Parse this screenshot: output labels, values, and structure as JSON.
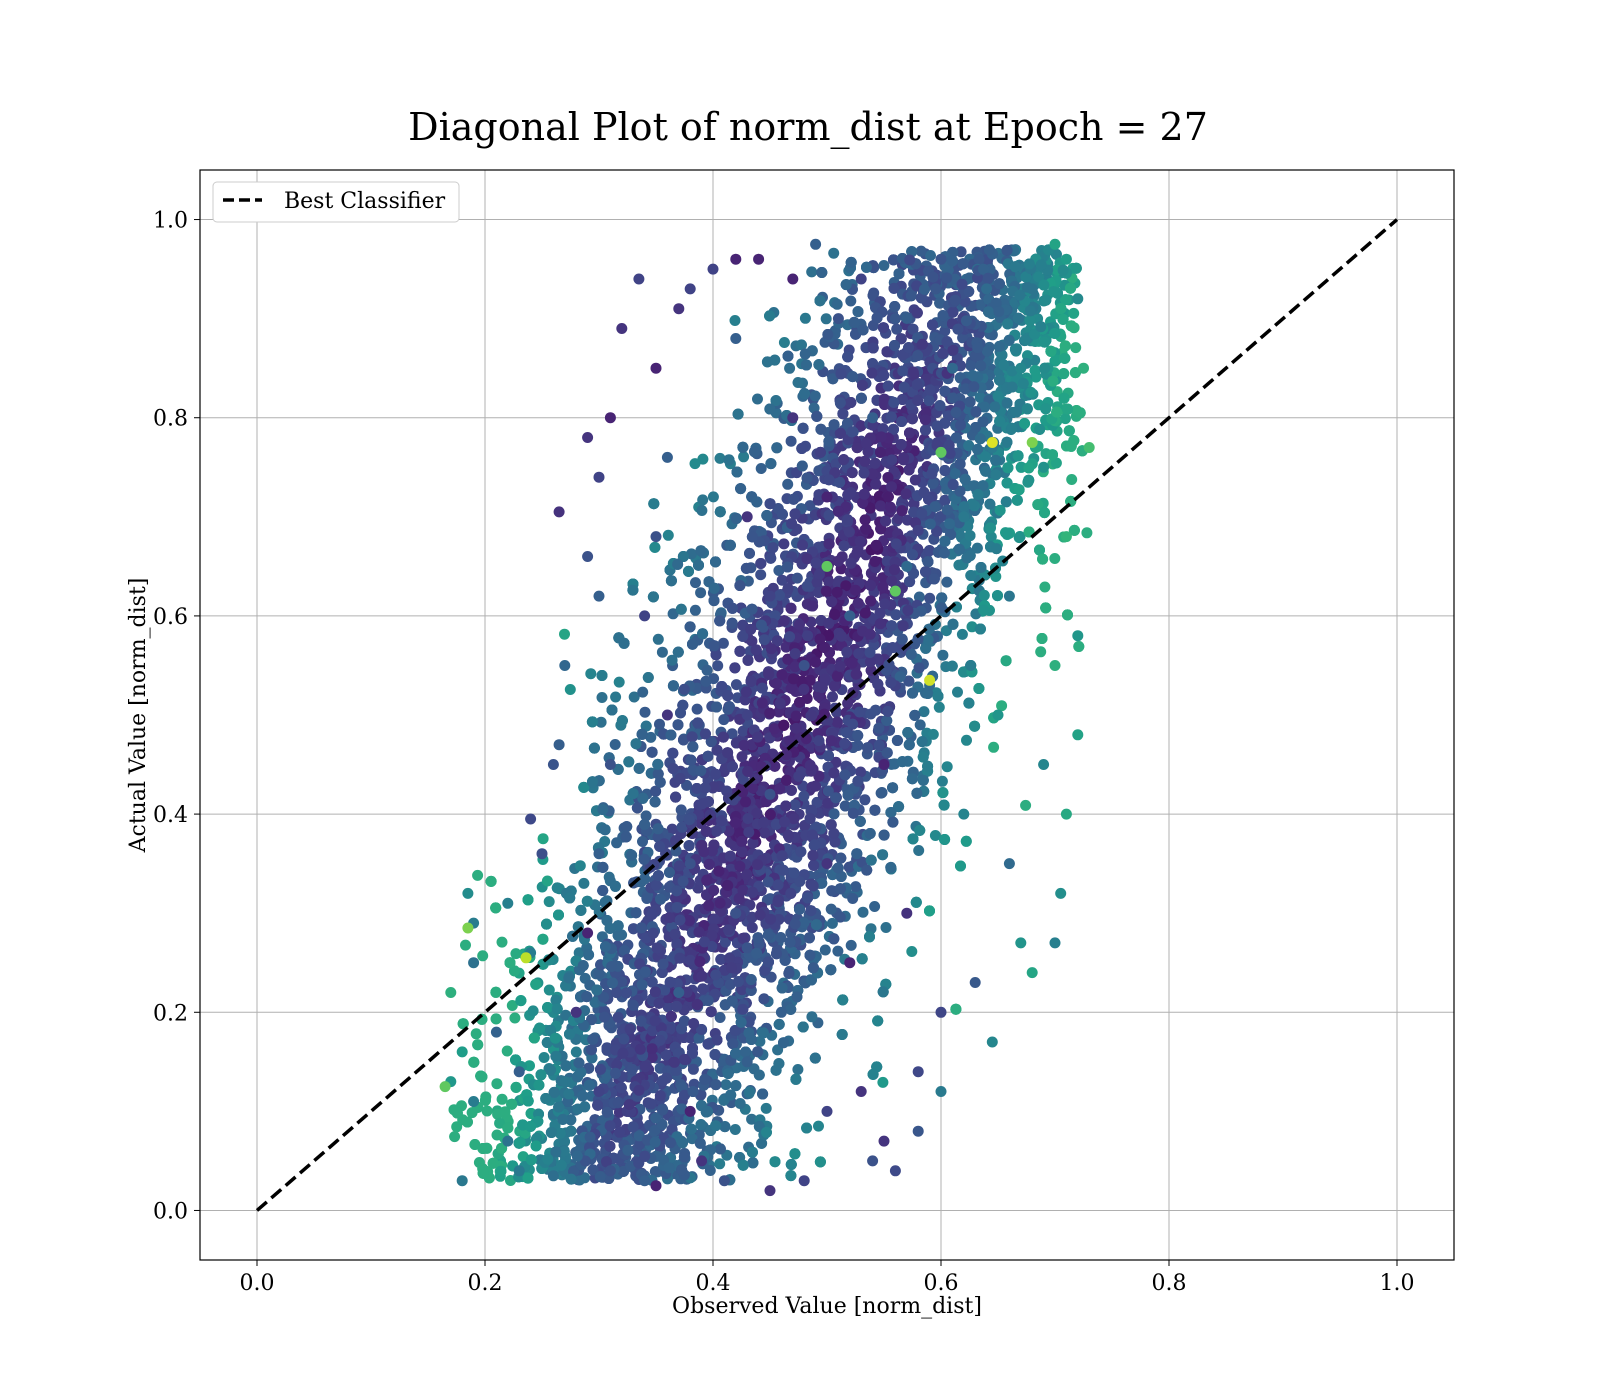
{
  "chart_data": {
    "type": "scatter",
    "title": "Diagonal Plot of norm_dist at Epoch = 27",
    "xlabel": "Observed Value [norm_dist]",
    "ylabel": "Actual Value [norm_dist]",
    "xlim": [
      -0.05,
      1.05
    ],
    "ylim": [
      -0.05,
      1.05
    ],
    "xticks": [
      "0.0",
      "0.2",
      "0.4",
      "0.6",
      "0.8",
      "1.0"
    ],
    "yticks": [
      "0.0",
      "0.2",
      "0.4",
      "0.6",
      "0.8",
      "1.0"
    ],
    "grid": true,
    "legend": {
      "placement": "upper-left",
      "entries": [
        "Best Classifier"
      ]
    },
    "colormap": "viridis",
    "series": [
      {
        "name": "Best Classifier",
        "kind": "line",
        "style": "dashed",
        "color": "#000000",
        "x": [
          0.0,
          1.0
        ],
        "y": [
          0.0,
          1.0
        ]
      }
    ],
    "points": [
      {
        "x": 0.18,
        "y": 0.03
      },
      {
        "x": 0.19,
        "y": 0.11
      },
      {
        "x": 0.17,
        "y": 0.13
      },
      {
        "x": 0.18,
        "y": 0.16
      },
      {
        "x": 0.17,
        "y": 0.22
      },
      {
        "x": 0.19,
        "y": 0.25
      },
      {
        "x": 0.19,
        "y": 0.29
      },
      {
        "x": 0.185,
        "y": 0.32
      },
      {
        "x": 0.22,
        "y": 0.31
      },
      {
        "x": 0.24,
        "y": 0.26
      },
      {
        "x": 0.21,
        "y": 0.18
      },
      {
        "x": 0.23,
        "y": 0.14
      },
      {
        "x": 0.22,
        "y": 0.07
      },
      {
        "x": 0.23,
        "y": 0.04
      },
      {
        "x": 0.26,
        "y": 0.035
      },
      {
        "x": 0.24,
        "y": 0.395
      },
      {
        "x": 0.25,
        "y": 0.36
      },
      {
        "x": 0.26,
        "y": 0.45
      },
      {
        "x": 0.265,
        "y": 0.47
      },
      {
        "x": 0.27,
        "y": 0.55
      },
      {
        "x": 0.265,
        "y": 0.705
      },
      {
        "x": 0.29,
        "y": 0.78
      },
      {
        "x": 0.3,
        "y": 0.74
      },
      {
        "x": 0.29,
        "y": 0.66
      },
      {
        "x": 0.3,
        "y": 0.62
      },
      {
        "x": 0.31,
        "y": 0.8
      },
      {
        "x": 0.32,
        "y": 0.89
      },
      {
        "x": 0.335,
        "y": 0.94
      },
      {
        "x": 0.31,
        "y": 0.45
      },
      {
        "x": 0.3,
        "y": 0.36
      },
      {
        "x": 0.29,
        "y": 0.28
      },
      {
        "x": 0.28,
        "y": 0.2
      },
      {
        "x": 0.3,
        "y": 0.12
      },
      {
        "x": 0.31,
        "y": 0.04
      },
      {
        "x": 0.34,
        "y": 0.03
      },
      {
        "x": 0.35,
        "y": 0.025
      },
      {
        "x": 0.36,
        "y": 0.5
      },
      {
        "x": 0.34,
        "y": 0.6
      },
      {
        "x": 0.35,
        "y": 0.68
      },
      {
        "x": 0.36,
        "y": 0.76
      },
      {
        "x": 0.35,
        "y": 0.85
      },
      {
        "x": 0.37,
        "y": 0.91
      },
      {
        "x": 0.38,
        "y": 0.93
      },
      {
        "x": 0.38,
        "y": 0.35
      },
      {
        "x": 0.37,
        "y": 0.22
      },
      {
        "x": 0.38,
        "y": 0.1
      },
      {
        "x": 0.39,
        "y": 0.05
      },
      {
        "x": 0.4,
        "y": 0.95
      },
      {
        "x": 0.41,
        "y": 0.03
      },
      {
        "x": 0.42,
        "y": 0.88
      },
      {
        "x": 0.42,
        "y": 0.96
      },
      {
        "x": 0.43,
        "y": 0.7
      },
      {
        "x": 0.43,
        "y": 0.5
      },
      {
        "x": 0.42,
        "y": 0.3
      },
      {
        "x": 0.43,
        "y": 0.15
      },
      {
        "x": 0.44,
        "y": 0.96
      },
      {
        "x": 0.45,
        "y": 0.02
      },
      {
        "x": 0.45,
        "y": 0.62
      },
      {
        "x": 0.45,
        "y": 0.42
      },
      {
        "x": 0.46,
        "y": 0.2
      },
      {
        "x": 0.47,
        "y": 0.94
      },
      {
        "x": 0.47,
        "y": 0.8
      },
      {
        "x": 0.48,
        "y": 0.03
      },
      {
        "x": 0.48,
        "y": 0.55
      },
      {
        "x": 0.49,
        "y": 0.975
      },
      {
        "x": 0.5,
        "y": 0.72
      },
      {
        "x": 0.5,
        "y": 0.35
      },
      {
        "x": 0.5,
        "y": 0.1
      },
      {
        "x": 0.51,
        "y": 0.9
      },
      {
        "x": 0.52,
        "y": 0.6
      },
      {
        "x": 0.52,
        "y": 0.25
      },
      {
        "x": 0.53,
        "y": 0.12
      },
      {
        "x": 0.53,
        "y": 0.94
      },
      {
        "x": 0.54,
        "y": 0.05
      },
      {
        "x": 0.54,
        "y": 0.8
      },
      {
        "x": 0.55,
        "y": 0.45
      },
      {
        "x": 0.55,
        "y": 0.07
      },
      {
        "x": 0.56,
        "y": 0.04
      },
      {
        "x": 0.56,
        "y": 0.9
      },
      {
        "x": 0.57,
        "y": 0.65
      },
      {
        "x": 0.57,
        "y": 0.3
      },
      {
        "x": 0.58,
        "y": 0.14
      },
      {
        "x": 0.58,
        "y": 0.08
      },
      {
        "x": 0.59,
        "y": 0.53
      },
      {
        "x": 0.6,
        "y": 0.12
      },
      {
        "x": 0.6,
        "y": 0.2
      },
      {
        "x": 0.6,
        "y": 0.96
      },
      {
        "x": 0.61,
        "y": 0.85
      },
      {
        "x": 0.62,
        "y": 0.7
      },
      {
        "x": 0.62,
        "y": 0.4
      },
      {
        "x": 0.63,
        "y": 0.23
      },
      {
        "x": 0.64,
        "y": 0.93
      },
      {
        "x": 0.645,
        "y": 0.77
      },
      {
        "x": 0.645,
        "y": 0.17
      },
      {
        "x": 0.65,
        "y": 0.5
      },
      {
        "x": 0.66,
        "y": 0.35
      },
      {
        "x": 0.66,
        "y": 0.62
      },
      {
        "x": 0.67,
        "y": 0.85
      },
      {
        "x": 0.67,
        "y": 0.27
      },
      {
        "x": 0.68,
        "y": 0.24
      },
      {
        "x": 0.68,
        "y": 0.93
      },
      {
        "x": 0.69,
        "y": 0.45
      },
      {
        "x": 0.69,
        "y": 0.75
      },
      {
        "x": 0.7,
        "y": 0.975
      },
      {
        "x": 0.7,
        "y": 0.55
      },
      {
        "x": 0.7,
        "y": 0.27
      },
      {
        "x": 0.705,
        "y": 0.32
      },
      {
        "x": 0.71,
        "y": 0.96
      },
      {
        "x": 0.71,
        "y": 0.4
      },
      {
        "x": 0.71,
        "y": 0.68
      },
      {
        "x": 0.72,
        "y": 0.92
      },
      {
        "x": 0.72,
        "y": 0.58
      },
      {
        "x": 0.72,
        "y": 0.48
      },
      {
        "x": 0.725,
        "y": 0.85
      },
      {
        "x": 0.73,
        "y": 0.77
      }
    ]
  }
}
